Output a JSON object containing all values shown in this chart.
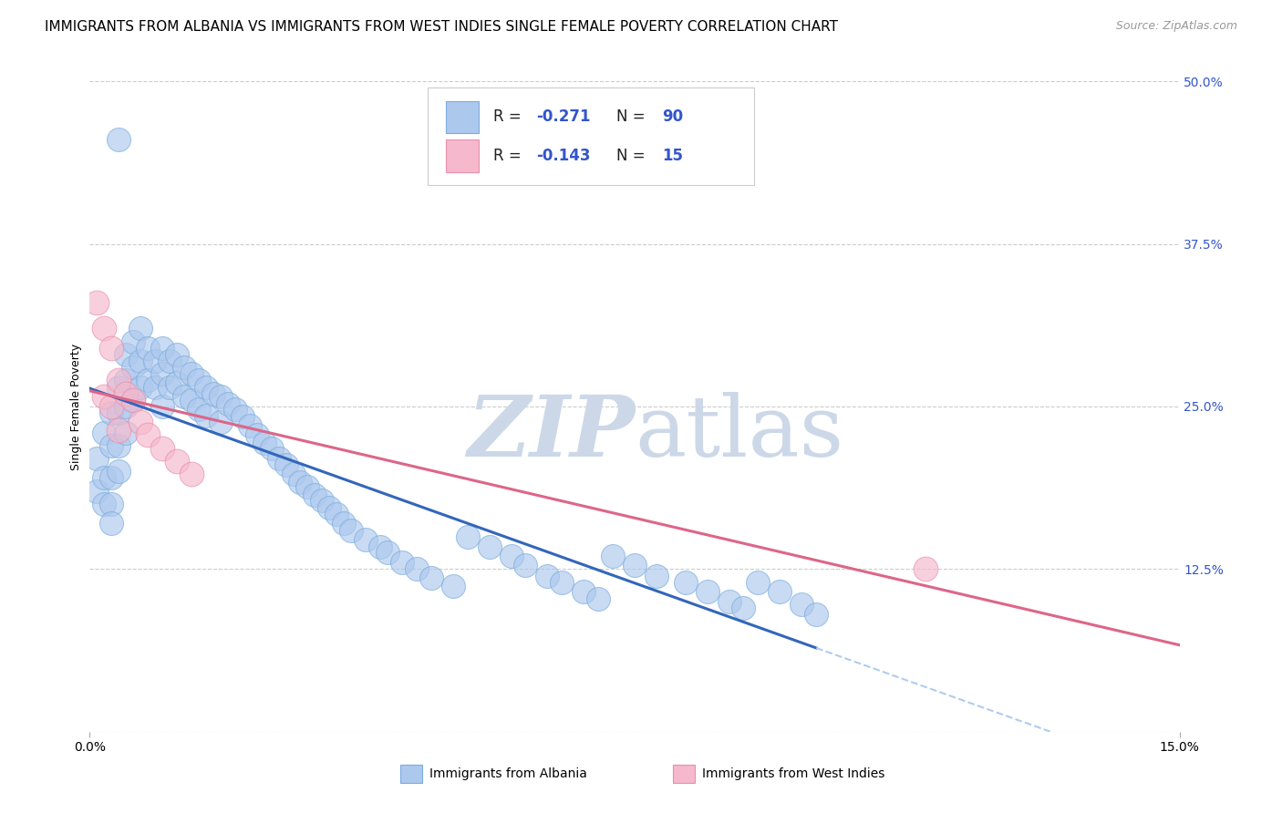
{
  "title": "IMMIGRANTS FROM ALBANIA VS IMMIGRANTS FROM WEST INDIES SINGLE FEMALE POVERTY CORRELATION CHART",
  "source": "Source: ZipAtlas.com",
  "ylabel": "Single Female Poverty",
  "right_ytick_labels": [
    "",
    "12.5%",
    "25.0%",
    "37.5%",
    "50.0%"
  ],
  "right_yticks": [
    0.0,
    0.125,
    0.25,
    0.375,
    0.5
  ],
  "albania_color": "#adc8ed",
  "albania_edge": "#7aacdd",
  "west_indies_color": "#f5b8cc",
  "west_indies_edge": "#e890aa",
  "albania_line_color": "#3366bb",
  "west_indies_line_color": "#dd6688",
  "dashed_line_color": "#b0ccee",
  "watermark_zip_color": "#ccd8e8",
  "watermark_atlas_color": "#ccd8e8",
  "xlim": [
    0.0,
    0.15
  ],
  "ylim": [
    0.0,
    0.5
  ],
  "albania_x": [
    0.001,
    0.001,
    0.002,
    0.002,
    0.002,
    0.003,
    0.003,
    0.003,
    0.003,
    0.003,
    0.004,
    0.004,
    0.004,
    0.004,
    0.005,
    0.005,
    0.005,
    0.005,
    0.006,
    0.006,
    0.006,
    0.007,
    0.007,
    0.007,
    0.008,
    0.008,
    0.009,
    0.009,
    0.01,
    0.01,
    0.01,
    0.011,
    0.011,
    0.012,
    0.012,
    0.013,
    0.013,
    0.014,
    0.014,
    0.015,
    0.015,
    0.016,
    0.016,
    0.017,
    0.018,
    0.018,
    0.019,
    0.02,
    0.021,
    0.022,
    0.023,
    0.024,
    0.025,
    0.026,
    0.027,
    0.028,
    0.029,
    0.03,
    0.031,
    0.032,
    0.033,
    0.034,
    0.035,
    0.036,
    0.038,
    0.04,
    0.041,
    0.043,
    0.045,
    0.047,
    0.05,
    0.052,
    0.055,
    0.058,
    0.06,
    0.063,
    0.065,
    0.068,
    0.07,
    0.072,
    0.075,
    0.078,
    0.082,
    0.085,
    0.088,
    0.09,
    0.092,
    0.095,
    0.098,
    0.1
  ],
  "albania_y": [
    0.21,
    0.185,
    0.23,
    0.195,
    0.175,
    0.245,
    0.22,
    0.195,
    0.175,
    0.16,
    0.265,
    0.245,
    0.22,
    0.2,
    0.29,
    0.27,
    0.25,
    0.23,
    0.3,
    0.28,
    0.255,
    0.31,
    0.285,
    0.265,
    0.295,
    0.27,
    0.285,
    0.265,
    0.295,
    0.275,
    0.25,
    0.285,
    0.265,
    0.29,
    0.268,
    0.28,
    0.258,
    0.275,
    0.255,
    0.27,
    0.248,
    0.265,
    0.243,
    0.26,
    0.258,
    0.238,
    0.252,
    0.248,
    0.242,
    0.235,
    0.228,
    0.222,
    0.218,
    0.21,
    0.205,
    0.198,
    0.192,
    0.188,
    0.182,
    0.178,
    0.172,
    0.167,
    0.16,
    0.155,
    0.148,
    0.142,
    0.138,
    0.13,
    0.125,
    0.118,
    0.112,
    0.15,
    0.142,
    0.135,
    0.128,
    0.12,
    0.115,
    0.108,
    0.102,
    0.135,
    0.128,
    0.12,
    0.115,
    0.108,
    0.1,
    0.095,
    0.115,
    0.108,
    0.098,
    0.09
  ],
  "albania_outlier_x": [
    0.004
  ],
  "albania_outlier_y": [
    0.455
  ],
  "west_indies_x": [
    0.001,
    0.002,
    0.002,
    0.003,
    0.003,
    0.004,
    0.004,
    0.005,
    0.006,
    0.007,
    0.008,
    0.01,
    0.012,
    0.014,
    0.115
  ],
  "west_indies_y": [
    0.33,
    0.31,
    0.258,
    0.295,
    0.25,
    0.27,
    0.232,
    0.26,
    0.255,
    0.238,
    0.228,
    0.218,
    0.208,
    0.198,
    0.125
  ],
  "albania_r": -0.271,
  "albania_n": 90,
  "west_indies_r": -0.143,
  "west_indies_n": 15,
  "r_color": "#3355cc",
  "n_color": "#3355cc",
  "legend_text_color": "#222222"
}
